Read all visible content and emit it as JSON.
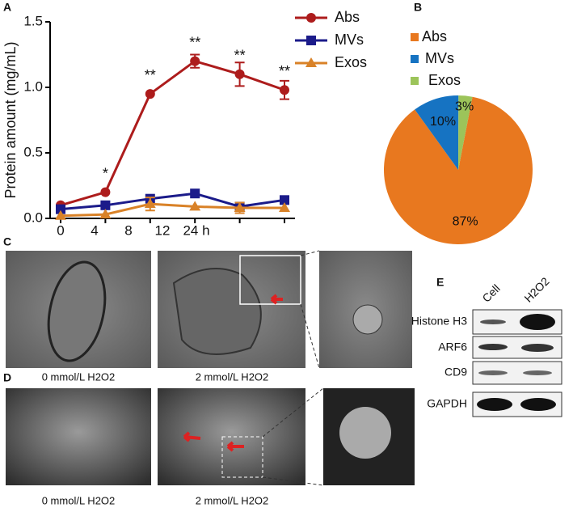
{
  "panel_labels": [
    "A",
    "B",
    "C",
    "D",
    "E"
  ],
  "chart_data": [
    {
      "type": "line",
      "ylabel": "Protein amount (mg/mL)",
      "categories": [
        "0",
        "4",
        "8",
        "12",
        "24 h",
        null
      ],
      "ylim": [
        0,
        1.5
      ],
      "yticks": [
        {
          "value": 0,
          "label": "0.0"
        },
        0.5,
        {
          "value": 1,
          "label": "1.0"
        },
        1.5
      ],
      "point_labels": [
        null,
        "*",
        "**",
        "**",
        "**",
        "**"
      ],
      "series": [
        {
          "name": "Abs",
          "color": "#ad1c1c",
          "marker": "circle",
          "values": [
            0.1,
            0.2,
            0.95,
            1.2,
            1.1,
            0.98
          ],
          "errors": [
            null,
            null,
            null,
            0.05,
            0.09,
            0.07
          ]
        },
        {
          "name": "MVs",
          "color": "#1b1b8a",
          "marker": "square",
          "values": [
            0.07,
            0.1,
            0.15,
            0.19,
            0.09,
            0.14
          ],
          "errors": [
            null,
            null,
            null,
            null,
            null,
            null
          ]
        },
        {
          "name": "Exos",
          "color": "#d98228",
          "marker": "triangle",
          "values": [
            0.02,
            0.03,
            0.11,
            0.09,
            0.08,
            0.08
          ],
          "errors": [
            null,
            null,
            0.05,
            null,
            0.04,
            null
          ]
        }
      ]
    },
    {
      "type": "pie",
      "categories": [
        "Abs",
        "MVs",
        "Exos"
      ],
      "values": [
        87,
        10,
        3
      ],
      "value_labels": [
        "87%",
        "10%",
        "3%"
      ],
      "colors": [
        "#e8781f",
        "#1673c2",
        "#9cc45a"
      ]
    }
  ],
  "micrographs": {
    "C": {
      "captions": [
        "0 mmol/L H2O2",
        "2 mmol/L H2O2"
      ]
    },
    "D": {
      "captions": [
        "0 mmol/L H2O2",
        "2 mmol/L H2O2"
      ]
    }
  },
  "western_blot": {
    "columns": [
      "Cell",
      "H2O2"
    ],
    "rows": [
      "Histone H3",
      "ARF6",
      "CD9",
      "GAPDH"
    ]
  }
}
